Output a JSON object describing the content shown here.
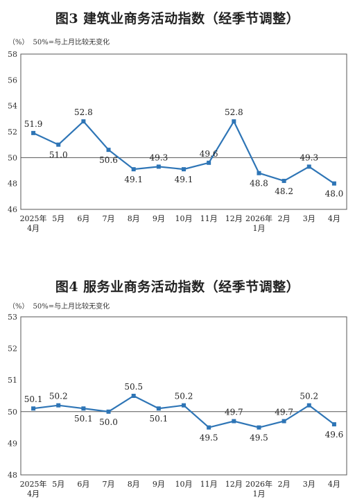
{
  "charts": [
    {
      "title": "图3  建筑业商务活动指数（经季节调整）",
      "unit": "（%）",
      "note": "50%=与上月比较无变化"
    },
    {
      "title": "图4  服务业商务活动指数（经季节调整）",
      "unit": "（%）",
      "note": "50%=与上月比较无变化"
    }
  ],
  "chart_data": [
    {
      "type": "line",
      "title": "图3  建筑业商务活动指数（经季节调整）",
      "ylabel": "（%）",
      "categories": [
        [
          "2025年",
          "4月"
        ],
        [
          "5月"
        ],
        [
          "6月"
        ],
        [
          "7月"
        ],
        [
          "8月"
        ],
        [
          "9月"
        ],
        [
          "10月"
        ],
        [
          "11月"
        ],
        [
          "12月"
        ],
        [
          "2026年",
          "1月"
        ],
        [
          "2月"
        ],
        [
          "3月"
        ],
        [
          "4月"
        ]
      ],
      "values": [
        51.9,
        51.0,
        52.8,
        50.6,
        49.1,
        49.3,
        49.1,
        49.6,
        52.8,
        48.8,
        48.2,
        49.3,
        48.0
      ],
      "ylim": [
        46,
        58
      ],
      "yticks": [
        46,
        48,
        50,
        52,
        54,
        56,
        58
      ],
      "reference_line": 50,
      "grid": false,
      "color": "#2e75b6"
    },
    {
      "type": "line",
      "title": "图4  服务业商务活动指数（经季节调整）",
      "ylabel": "（%）",
      "categories": [
        [
          "2025年",
          "4月"
        ],
        [
          "5月"
        ],
        [
          "6月"
        ],
        [
          "7月"
        ],
        [
          "8月"
        ],
        [
          "9月"
        ],
        [
          "10月"
        ],
        [
          "11月"
        ],
        [
          "12月"
        ],
        [
          "2026年",
          "1月"
        ],
        [
          "2月"
        ],
        [
          "3月"
        ],
        [
          "4月"
        ]
      ],
      "values": [
        50.1,
        50.2,
        50.1,
        50.0,
        50.5,
        50.1,
        50.2,
        49.5,
        49.7,
        49.5,
        49.7,
        50.2,
        49.6
      ],
      "ylim": [
        48,
        53
      ],
      "yticks": [
        48,
        49,
        50,
        51,
        52,
        53
      ],
      "reference_line": 50,
      "grid": false,
      "color": "#2e75b6"
    }
  ]
}
